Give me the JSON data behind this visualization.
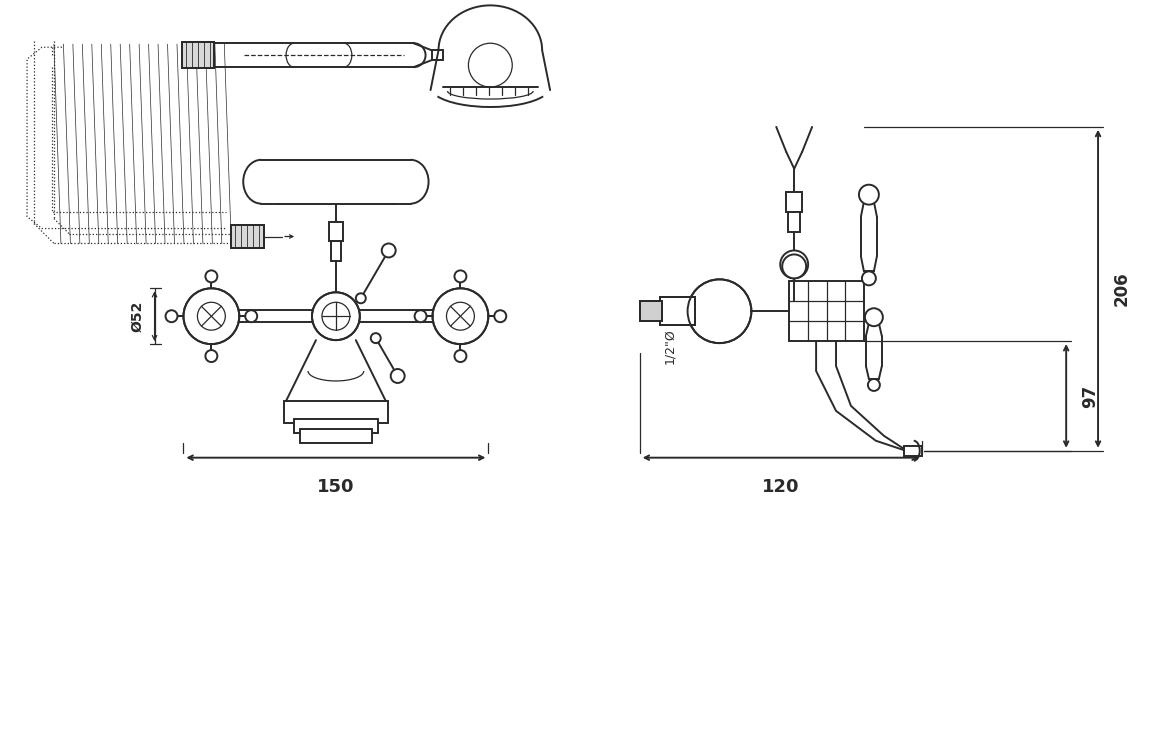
{
  "bg_color": "#ffffff",
  "lc": "#2a2a2a",
  "lw": 1.4,
  "tlw": 0.9,
  "fig_w": 11.53,
  "fig_h": 7.46,
  "dpi": 100,
  "ann": {
    "d52": "Ø52",
    "w150": "150",
    "w120": "120",
    "h206": "206",
    "h97": "97",
    "pipe": "1/2\"Ø"
  }
}
